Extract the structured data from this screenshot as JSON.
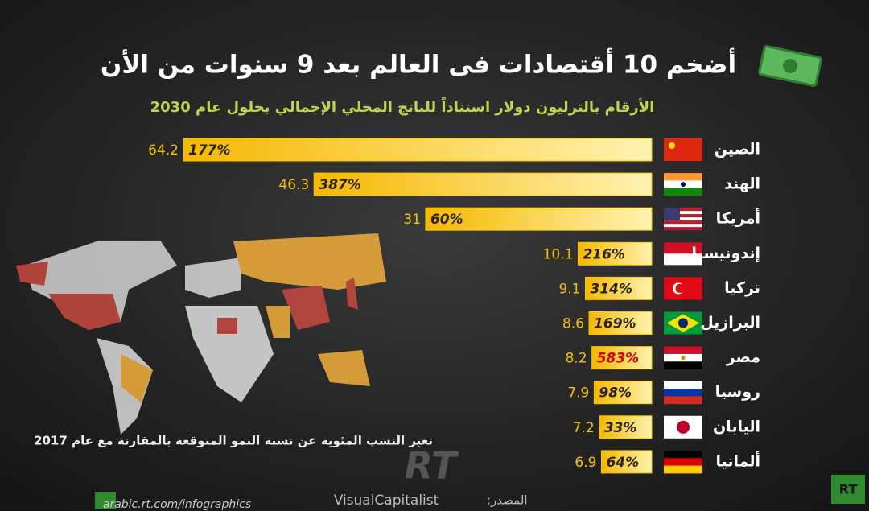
{
  "chart_data": {
    "type": "bar",
    "orientation": "horizontal",
    "title": "أضخم 10 أقتصادات فى العالم بعد 9 سنوات من الأن",
    "subtitle": "الأرقام بالترليون دولار استناداً للناتج المحلي الإجمالي بحلول عام 2030",
    "categories": [
      "الصين",
      "الهند",
      "أمريكا",
      "إندونيسيا",
      "تركيا",
      "البرازيل",
      "مصر",
      "روسيا",
      "اليابان",
      "ألمانيا"
    ],
    "values": [
      64.2,
      46.3,
      31,
      10.1,
      9.1,
      8.6,
      8.2,
      7.9,
      7.2,
      6.9
    ],
    "growth": [
      "177%",
      "387%",
      "60%",
      "216%",
      "314%",
      "169%",
      "583%",
      "98%",
      "33%",
      "64%"
    ],
    "growth_colors": [
      "#2a2200",
      "#2a2200",
      "#2a2200",
      "#2a2200",
      "#2a2200",
      "#2a2200",
      "#d40000",
      "#2a2200",
      "#2a2200",
      "#2a2200"
    ],
    "color": "#f7c600",
    "note": "تعبر النسب المئوية عن نسبة النمو المتوقعة بالمقارنة مع عام 2017",
    "source_label": "المصدر:",
    "source": "VisualCapitalist",
    "url": "arabic.rt.com/infographics",
    "logo": "RT"
  }
}
